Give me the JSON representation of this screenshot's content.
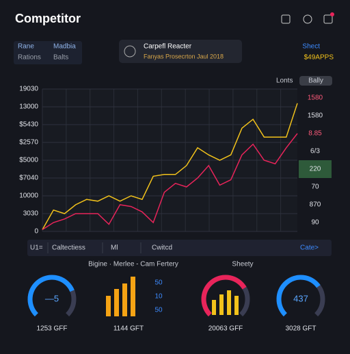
{
  "header": {
    "title": "Competitor"
  },
  "tabs": [
    "Rane",
    "Madbia",
    "Rations",
    "Balts"
  ],
  "card": {
    "title": "Carpefl Reacter",
    "subtitle": "Fanyas Prosecrton Jaul 2018"
  },
  "summary": {
    "label": "Shect",
    "value": "$49APPS"
  },
  "toggle": {
    "label": "Lonts",
    "option": "Bally"
  },
  "chart_data": {
    "type": "line",
    "categories": [
      null,
      null,
      null,
      null,
      null,
      null,
      null,
      null,
      null,
      null,
      null,
      null,
      null,
      null,
      null,
      null,
      null,
      null,
      null,
      null,
      null,
      null,
      null,
      null
    ],
    "ylim": [
      0,
      8
    ],
    "yticks": [
      0,
      {
        "value": 1,
        "label": "3030"
      },
      {
        "value": 2,
        "label": "10000"
      },
      {
        "value": 3,
        "label": "$7040"
      },
      {
        "value": 4,
        "label": "$5000"
      },
      {
        "value": 5,
        "label": "$2570"
      },
      {
        "value": 6,
        "label": "$5430"
      },
      {
        "value": 7,
        "label": "13000"
      },
      {
        "value": 8,
        "label": "19030"
      }
    ],
    "grid": true,
    "series": [
      {
        "color": "#f2c21b",
        "values": [
          0.1,
          1.2,
          1.0,
          1.5,
          1.8,
          1.7,
          2.0,
          1.7,
          2.0,
          1.8,
          3.1,
          3.2,
          3.2,
          3.7,
          4.7,
          4.3,
          4.0,
          4.3,
          5.8,
          6.3,
          5.3,
          5.3,
          5.3,
          7.2
        ]
      },
      {
        "color": "#e8245a",
        "values": [
          0.1,
          0.5,
          0.7,
          1.0,
          1.0,
          1.0,
          0.4,
          1.5,
          1.4,
          1.1,
          0.5,
          2.2,
          2.7,
          2.5,
          3.0,
          3.7,
          2.6,
          2.9,
          4.3,
          4.9,
          4.0,
          3.8,
          4.7,
          5.5
        ]
      }
    ]
  },
  "side_panel": {
    "labels": [
      "1580",
      "1580",
      "8.85",
      "6/3",
      "220",
      "70",
      "870",
      "90"
    ],
    "highlight": 4
  },
  "toolbar": [
    "U1=",
    "Caltectiess",
    "Ml",
    "Cwitcd",
    "Cate>"
  ],
  "widgets": {
    "title": "Bigine · Merlee - Cam Fertery",
    "title2": "Sheety",
    "gauge_range": [
      0,
      100
    ],
    "gauges": [
      {
        "value": 75,
        "label": "—5",
        "caption": "1253 GFF",
        "color": "#1e8fff"
      },
      {
        "value": 72,
        "label": "",
        "caption": "20063 GFF",
        "color": "#e8245a"
      },
      {
        "value": 70,
        "label": "437",
        "caption": "3028 GFT",
        "color": "#1e8fff"
      }
    ],
    "bars": {
      "values": [
        30,
        40,
        48,
        58
      ],
      "caption": "1144 GFT",
      "color": "#f5a314"
    },
    "bars2": {
      "values": [
        22,
        30,
        36,
        28
      ],
      "color": "#f2c21b"
    },
    "levels": [
      "50",
      "10",
      "50"
    ]
  }
}
